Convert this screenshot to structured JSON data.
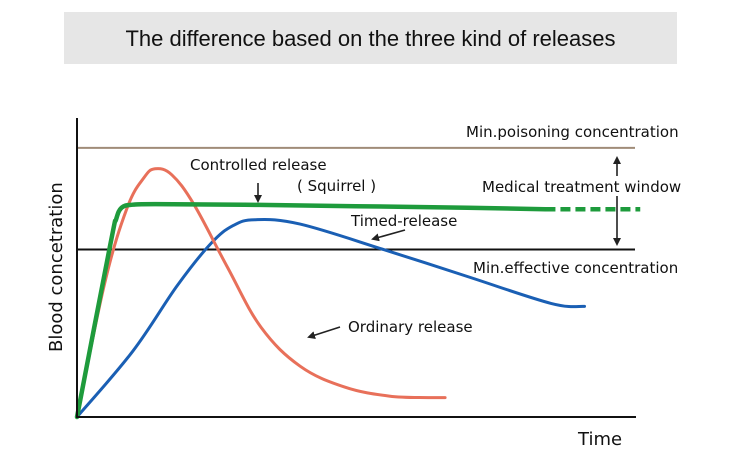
{
  "chart_data": {
    "type": "line",
    "title": "The difference based on the three kind of releases",
    "xlabel": "Time",
    "ylabel": "Blood concetration",
    "xlim": [
      0,
      100
    ],
    "ylim": [
      0,
      100
    ],
    "grid": false,
    "reference_lines": [
      {
        "name": "Min.poisoning concentration",
        "y": 90,
        "color": "#a08c78"
      },
      {
        "name": "Min.effective concentration",
        "y": 56,
        "color": "#111111"
      }
    ],
    "window_label": "Medical treatment window",
    "series": [
      {
        "name": "Controlled release",
        "sublabel": "( Squirrel )",
        "color": "#1e9b3c",
        "x": [
          0,
          6,
          7,
          8,
          10,
          14,
          30,
          50,
          70,
          84
        ],
        "y": [
          0,
          58,
          66,
          70,
          71,
          71.2,
          71,
          70.5,
          70,
          69.5
        ],
        "dashed_extension": {
          "x": [
            84,
            101
          ],
          "y": [
            69.5,
            69.5
          ]
        }
      },
      {
        "name": "Ordinary release",
        "color": "#e8705a",
        "x": [
          0,
          5,
          9,
          12,
          14,
          17,
          21,
          27,
          33,
          40,
          48,
          56,
          63,
          66
        ],
        "y": [
          0,
          45,
          70,
          80,
          83,
          81,
          71,
          50,
          30,
          17,
          10,
          7,
          6.5,
          6.5
        ]
      },
      {
        "name": "Timed-release",
        "color": "#1a5fb4",
        "x": [
          0,
          10,
          18,
          24,
          28,
          32,
          40,
          55,
          70,
          85,
          91
        ],
        "y": [
          0,
          22,
          44,
          58,
          64,
          66,
          64.5,
          56,
          47,
          38,
          37
        ]
      }
    ]
  }
}
